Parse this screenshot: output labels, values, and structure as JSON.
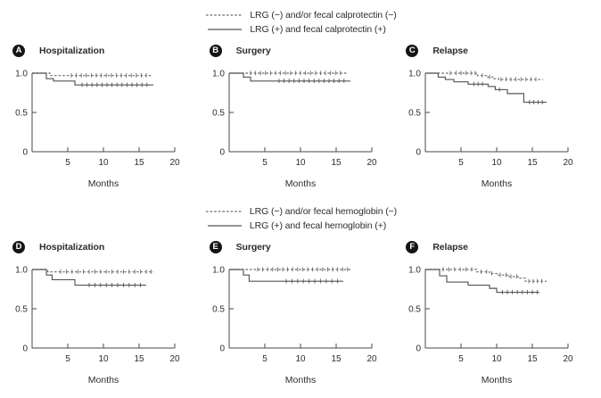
{
  "figure": {
    "colors": {
      "solid_line": "#545456",
      "dashed_line": "#6b6b6d",
      "text": "#2e2d2c",
      "axis": "#4a4a4c",
      "badge_bg": "#151515",
      "badge_fg": "#ffffff"
    },
    "legends": [
      {
        "items": [
          {
            "style": "dashed",
            "label": "LRG (−) and/or fecal calprotectin (−)"
          },
          {
            "style": "solid",
            "label": "LRG (+) and fecal calprotectin (+)"
          }
        ]
      },
      {
        "items": [
          {
            "style": "dashed",
            "label": "LRG (−) and/or fecal hemoglobin (−)"
          },
          {
            "style": "solid",
            "label": "LRG (+) and fecal hemoglobin (+)"
          }
        ]
      }
    ]
  },
  "chart_data": [
    {
      "type": "line",
      "panel": "A",
      "title": "Hospitalization",
      "xlabel": "Months",
      "xlim": [
        0,
        20
      ],
      "ylim": [
        0,
        1.0
      ],
      "xticks": [
        5,
        10,
        15,
        20
      ],
      "yticks": [
        0,
        0.5,
        1.0
      ],
      "ytick_labels": [
        "0",
        "0.5",
        "1.0"
      ],
      "series": [
        {
          "name": "LRG (−) and/or fecal calprotectin (−)",
          "style": "dashed",
          "steps": [
            [
              0,
              1.0
            ],
            [
              2.5,
              0.97
            ]
          ],
          "end": 16.8,
          "censors": [
            5.5,
            6.2,
            6.9,
            7.6,
            8.3,
            9.0,
            9.7,
            10.4,
            11.1,
            11.8,
            12.5,
            13.2,
            13.9,
            14.6,
            15.3,
            16.0
          ]
        },
        {
          "name": "LRG (+) and fecal calprotectin (+)",
          "style": "solid",
          "steps": [
            [
              0,
              1.0
            ],
            [
              2,
              0.93
            ],
            [
              3,
              0.9
            ],
            [
              6,
              0.85
            ]
          ],
          "end": 17,
          "censors": [
            7.0,
            7.7,
            8.4,
            9.1,
            9.8,
            10.5,
            11.2,
            11.9,
            12.6,
            13.3,
            14.0,
            14.7,
            15.4,
            16.1
          ]
        }
      ]
    },
    {
      "type": "line",
      "panel": "B",
      "title": "Surgery",
      "xlabel": "Months",
      "xlim": [
        0,
        20
      ],
      "ylim": [
        0,
        1.0
      ],
      "xticks": [
        5,
        10,
        15,
        20
      ],
      "yticks": [
        0,
        0.5,
        1.0
      ],
      "ytick_labels": [
        "0",
        "0.5",
        "1.0"
      ],
      "series": [
        {
          "name": "LRG (−) and/or fecal calprotectin (−)",
          "style": "dashed",
          "steps": [
            [
              0,
              1.0
            ]
          ],
          "end": 16.5,
          "censors": [
            3.0,
            3.7,
            4.4,
            5.1,
            5.8,
            6.5,
            7.2,
            7.9,
            8.6,
            9.3,
            10.0,
            10.7,
            11.4,
            12.1,
            12.8,
            13.5,
            14.2,
            14.9,
            15.6
          ]
        },
        {
          "name": "LRG (+) and fecal calprotectin (+)",
          "style": "solid",
          "steps": [
            [
              0,
              1.0
            ],
            [
              2,
              0.95
            ],
            [
              3,
              0.9
            ]
          ],
          "end": 17,
          "censors": [
            7.0,
            7.7,
            8.4,
            9.1,
            9.8,
            10.5,
            11.2,
            11.9,
            12.6,
            13.3,
            14.0,
            14.7,
            15.4,
            16.1
          ]
        }
      ]
    },
    {
      "type": "line",
      "panel": "C",
      "title": "Relapse",
      "xlabel": "Months",
      "xlim": [
        0,
        20
      ],
      "ylim": [
        0,
        1.0
      ],
      "xticks": [
        5,
        10,
        15,
        20
      ],
      "yticks": [
        0,
        0.5,
        1.0
      ],
      "ytick_labels": [
        "0",
        "0.5",
        "1.0"
      ],
      "series": [
        {
          "name": "LRG (−) and/or fecal calprotectin (−)",
          "style": "dashed",
          "steps": [
            [
              0,
              1.0
            ],
            [
              7.3,
              0.97
            ],
            [
              8.6,
              0.95
            ],
            [
              9.6,
              0.93
            ],
            [
              10.3,
              0.92
            ]
          ],
          "end": 16.5,
          "censors": [
            3.5,
            4.3,
            5.0,
            5.7,
            6.4,
            7.0,
            8.0,
            9.0,
            10.6,
            11.3,
            12.0,
            12.7,
            13.4,
            14.1,
            14.8,
            15.5
          ]
        },
        {
          "name": "LRG (+) and fecal calprotectin (+)",
          "style": "solid",
          "steps": [
            [
              0,
              1.0
            ],
            [
              1.8,
              0.95
            ],
            [
              2.8,
              0.92
            ],
            [
              4,
              0.89
            ],
            [
              6,
              0.86
            ],
            [
              8.8,
              0.83
            ],
            [
              9.8,
              0.79
            ],
            [
              11.5,
              0.74
            ],
            [
              13.8,
              0.63
            ]
          ],
          "end": 17,
          "censors": [
            6.8,
            7.4,
            8.0,
            10.4,
            14.6,
            15.2,
            15.8,
            16.4
          ]
        }
      ]
    },
    {
      "type": "line",
      "panel": "D",
      "title": "Hospitalization",
      "xlabel": "Months",
      "xlim": [
        0,
        20
      ],
      "ylim": [
        0,
        1.0
      ],
      "xticks": [
        5,
        10,
        15,
        20
      ],
      "yticks": [
        0,
        0.5,
        1.0
      ],
      "ytick_labels": [
        "0",
        "0.5",
        "1.0"
      ],
      "series": [
        {
          "name": "LRG (−) and/or fecal hemoglobin (−)",
          "style": "dashed",
          "steps": [
            [
              0,
              1.0
            ],
            [
              2.2,
              0.97
            ]
          ],
          "end": 17,
          "censors": [
            4.0,
            4.8,
            5.6,
            6.4,
            7.2,
            8.0,
            8.8,
            9.6,
            10.4,
            11.2,
            12.0,
            12.8,
            13.6,
            14.4,
            15.2,
            16.0,
            16.7
          ]
        },
        {
          "name": "LRG (+) and fecal hemoglobin (+)",
          "style": "solid",
          "steps": [
            [
              0,
              1.0
            ],
            [
              2,
              0.93
            ],
            [
              2.8,
              0.87
            ],
            [
              6,
              0.8
            ]
          ],
          "end": 16,
          "censors": [
            8.0,
            8.8,
            9.6,
            10.4,
            11.2,
            12.0,
            12.8,
            13.6,
            14.4,
            15.2
          ]
        }
      ]
    },
    {
      "type": "line",
      "panel": "E",
      "title": "Surgery",
      "xlabel": "Months",
      "xlim": [
        0,
        20
      ],
      "ylim": [
        0,
        1.0
      ],
      "xticks": [
        5,
        10,
        15,
        20
      ],
      "yticks": [
        0,
        0.5,
        1.0
      ],
      "ytick_labels": [
        "0",
        "0.5",
        "1.0"
      ],
      "series": [
        {
          "name": "LRG (−) and/or fecal hemoglobin (−)",
          "style": "dashed",
          "steps": [
            [
              0,
              1.0
            ]
          ],
          "end": 17,
          "censors": [
            4.0,
            4.7,
            5.4,
            6.1,
            6.8,
            7.5,
            8.2,
            8.9,
            9.6,
            10.3,
            11.0,
            11.7,
            12.4,
            13.1,
            13.8,
            14.5,
            15.2,
            15.9,
            16.6
          ]
        },
        {
          "name": "LRG (+) and fecal hemoglobin (+)",
          "style": "solid",
          "steps": [
            [
              0,
              1.0
            ],
            [
              2,
              0.93
            ],
            [
              2.8,
              0.85
            ]
          ],
          "end": 16,
          "censors": [
            8.0,
            8.8,
            9.6,
            10.4,
            11.2,
            12.0,
            12.8,
            13.6,
            14.4,
            15.2
          ]
        }
      ]
    },
    {
      "type": "line",
      "panel": "F",
      "title": "Relapse",
      "xlabel": "Months",
      "xlim": [
        0,
        20
      ],
      "ylim": [
        0,
        1.0
      ],
      "xticks": [
        5,
        10,
        15,
        20
      ],
      "yticks": [
        0,
        0.5,
        1.0
      ],
      "ytick_labels": [
        "0",
        "0.5",
        "1.0"
      ],
      "series": [
        {
          "name": "LRG (−) and/or fecal hemoglobin (−)",
          "style": "dashed",
          "steps": [
            [
              0,
              1.0
            ],
            [
              7.2,
              0.97
            ],
            [
              9,
              0.95
            ],
            [
              10,
              0.93
            ],
            [
              11.6,
              0.91
            ],
            [
              13,
              0.89
            ],
            [
              14,
              0.85
            ]
          ],
          "end": 17,
          "censors": [
            2.5,
            3.3,
            4.1,
            4.9,
            5.7,
            6.5,
            7.8,
            8.6,
            9.3,
            10.5,
            11.3,
            12.0,
            12.8,
            14.5,
            15.1,
            15.7,
            16.3
          ]
        },
        {
          "name": "LRG (+) and fecal hemoglobin (+)",
          "style": "solid",
          "steps": [
            [
              0,
              1.0
            ],
            [
              2,
              0.92
            ],
            [
              3,
              0.84
            ],
            [
              6,
              0.8
            ],
            [
              9,
              0.76
            ],
            [
              10,
              0.71
            ]
          ],
          "end": 16,
          "censors": [
            10.8,
            11.5,
            12.2,
            12.9,
            13.6,
            14.3,
            15.0,
            15.7
          ]
        }
      ]
    }
  ]
}
